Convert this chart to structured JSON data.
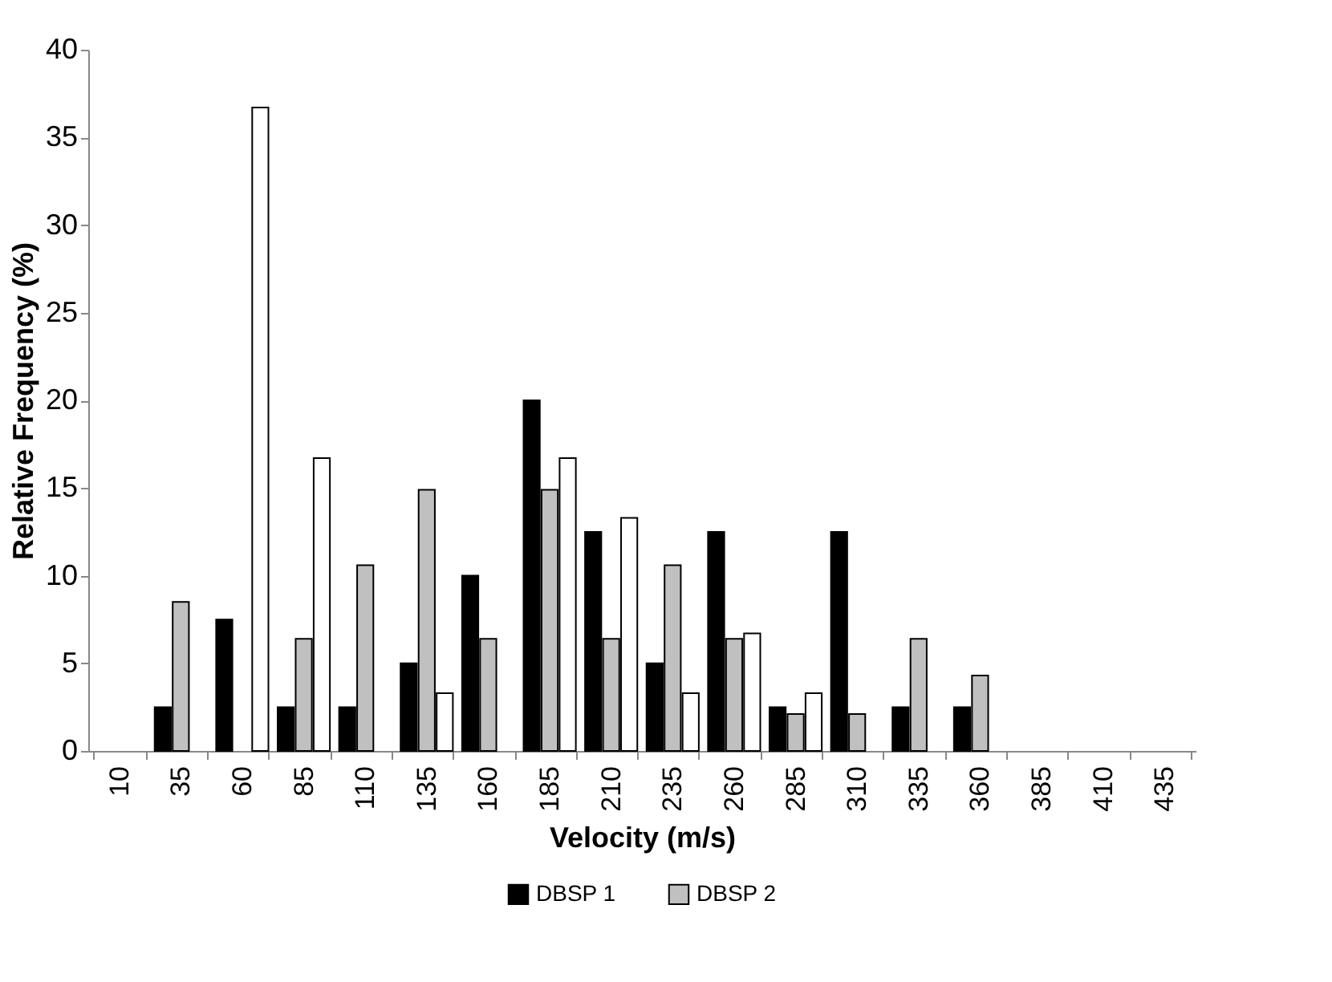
{
  "chart_data": {
    "type": "bar",
    "xlabel": "Velocity (m/s)",
    "ylabel": "Relative Frequency (%)",
    "categories": [
      "10",
      "35",
      "60",
      "85",
      "110",
      "135",
      "160",
      "185",
      "210",
      "235",
      "260",
      "285",
      "310",
      "335",
      "360",
      "385",
      "410",
      "435"
    ],
    "series": [
      {
        "name": "DBSP 1",
        "color": "#000000",
        "values": [
          0,
          2.5,
          7.5,
          2.5,
          2.5,
          5,
          10,
          20,
          12.5,
          5,
          12.5,
          2.5,
          12.5,
          2.5,
          2.5,
          0,
          0,
          0
        ]
      },
      {
        "name": "DBSP 2",
        "color": "#c0c0c0",
        "values": [
          0,
          8.5,
          0,
          6.4,
          10.6,
          14.9,
          6.4,
          14.9,
          6.4,
          10.6,
          6.4,
          2.1,
          2.1,
          6.4,
          4.3,
          0,
          0,
          0
        ]
      },
      {
        "color": "#ffffff",
        "values": [
          0,
          0,
          36.7,
          16.7,
          0,
          3.3,
          0,
          16.7,
          13.3,
          3.3,
          6.7,
          3.3,
          0,
          0,
          0,
          0,
          0,
          0
        ]
      }
    ],
    "ylim": [
      0,
      40
    ],
    "yticks": [
      0,
      5,
      10,
      15,
      20,
      25,
      30,
      35,
      40
    ],
    "grid": false,
    "legend": "bottom"
  }
}
